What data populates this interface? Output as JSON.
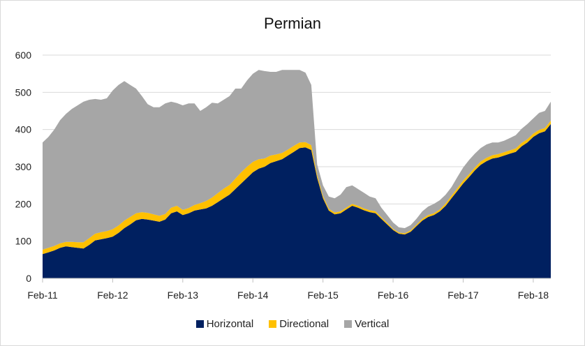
{
  "chart_data": {
    "type": "area",
    "stacked": true,
    "title": "Permian",
    "xlabel": "",
    "ylabel": "",
    "ylim": [
      0,
      600
    ],
    "yticks": [
      "0",
      "100",
      "200",
      "300",
      "400",
      "500",
      "600"
    ],
    "xlim": [
      "2011-02",
      "2018-05"
    ],
    "xticks": [
      "Feb-11",
      "Feb-12",
      "Feb-13",
      "Feb-14",
      "Feb-15",
      "Feb-16",
      "Feb-17",
      "Feb-18"
    ],
    "grid": "horizontal",
    "legend_position": "bottom",
    "x": [
      "2011-02",
      "2011-03",
      "2011-04",
      "2011-05",
      "2011-06",
      "2011-07",
      "2011-08",
      "2011-09",
      "2011-10",
      "2011-11",
      "2011-12",
      "2012-01",
      "2012-02",
      "2012-03",
      "2012-04",
      "2012-05",
      "2012-06",
      "2012-07",
      "2012-08",
      "2012-09",
      "2012-10",
      "2012-11",
      "2012-12",
      "2013-01",
      "2013-02",
      "2013-03",
      "2013-04",
      "2013-05",
      "2013-06",
      "2013-07",
      "2013-08",
      "2013-09",
      "2013-10",
      "2013-11",
      "2013-12",
      "2014-01",
      "2014-02",
      "2014-03",
      "2014-04",
      "2014-05",
      "2014-06",
      "2014-07",
      "2014-08",
      "2014-09",
      "2014-10",
      "2014-11",
      "2014-12",
      "2015-01",
      "2015-02",
      "2015-03",
      "2015-04",
      "2015-05",
      "2015-06",
      "2015-07",
      "2015-08",
      "2015-09",
      "2015-10",
      "2015-11",
      "2015-12",
      "2016-01",
      "2016-02",
      "2016-03",
      "2016-04",
      "2016-05",
      "2016-06",
      "2016-07",
      "2016-08",
      "2016-09",
      "2016-10",
      "2016-11",
      "2016-12",
      "2017-01",
      "2017-02",
      "2017-03",
      "2017-04",
      "2017-05",
      "2017-06",
      "2017-07",
      "2017-08",
      "2017-09",
      "2017-10",
      "2017-11",
      "2017-12",
      "2018-01",
      "2018-02",
      "2018-03",
      "2018-04",
      "2018-05"
    ],
    "series": [
      {
        "name": "Horizontal",
        "color": "#002060",
        "values": [
          65,
          70,
          75,
          82,
          86,
          84,
          82,
          80,
          90,
          102,
          105,
          108,
          112,
          122,
          135,
          145,
          156,
          160,
          158,
          155,
          152,
          158,
          175,
          180,
          170,
          175,
          182,
          185,
          188,
          195,
          205,
          215,
          225,
          240,
          255,
          270,
          285,
          295,
          300,
          310,
          315,
          320,
          330,
          340,
          350,
          352,
          345,
          270,
          215,
          182,
          172,
          175,
          185,
          195,
          190,
          183,
          178,
          175,
          160,
          145,
          130,
          120,
          118,
          125,
          140,
          155,
          165,
          170,
          180,
          195,
          215,
          235,
          255,
          272,
          290,
          305,
          315,
          322,
          325,
          330,
          335,
          340,
          355,
          365,
          380,
          390,
          395,
          415
        ]
      },
      {
        "name": "Directional",
        "color": "#ffc000",
        "values": [
          12,
          12,
          12,
          12,
          12,
          14,
          15,
          17,
          18,
          18,
          19,
          19,
          20,
          20,
          20,
          20,
          19,
          18,
          18,
          17,
          16,
          15,
          15,
          15,
          14,
          14,
          15,
          17,
          20,
          22,
          24,
          26,
          26,
          28,
          30,
          30,
          28,
          25,
          22,
          20,
          18,
          17,
          16,
          16,
          15,
          14,
          13,
          8,
          6,
          5,
          5,
          5,
          5,
          5,
          5,
          5,
          5,
          5,
          4,
          4,
          3,
          3,
          3,
          4,
          4,
          5,
          5,
          5,
          5,
          6,
          7,
          7,
          8,
          8,
          8,
          9,
          9,
          9,
          9,
          9,
          9,
          9,
          9,
          9,
          9,
          9,
          9,
          9
        ]
      },
      {
        "name": "Vertical",
        "color": "#a6a6a6",
        "values": [
          288,
          298,
          313,
          331,
          344,
          357,
          368,
          378,
          372,
          362,
          356,
          357,
          373,
          378,
          375,
          355,
          335,
          312,
          292,
          288,
          292,
          297,
          285,
          276,
          281,
          281,
          273,
          248,
          252,
          255,
          241,
          239,
          239,
          242,
          225,
          232,
          237,
          240,
          235,
          225,
          222,
          223,
          214,
          204,
          195,
          187,
          162,
          28,
          29,
          33,
          38,
          45,
          55,
          50,
          45,
          42,
          37,
          35,
          26,
          21,
          17,
          14,
          14,
          14,
          16,
          20,
          23,
          25,
          25,
          24,
          23,
          30,
          35,
          38,
          37,
          36,
          36,
          34,
          31,
          31,
          33,
          36,
          38,
          41,
          41,
          46,
          46,
          51
        ]
      }
    ]
  }
}
